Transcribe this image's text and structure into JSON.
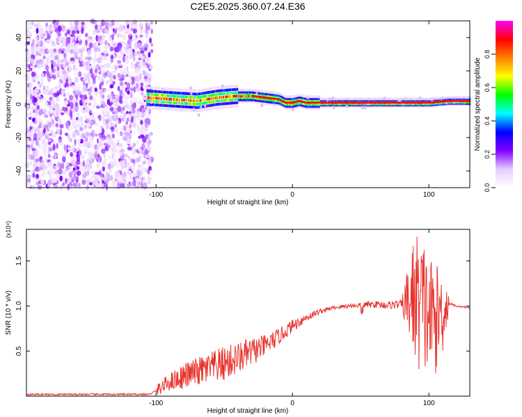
{
  "title": "C2E5.2025.360.07.24.E36",
  "chart_data": [
    {
      "type": "heatmap",
      "xlabel": "Height of straight line (km)",
      "ylabel": "Frequency (Hz)",
      "xlim": [
        -195,
        130
      ],
      "ylim": [
        -50,
        50
      ],
      "xticks": [
        -100,
        0,
        100
      ],
      "xtick_labels": [
        "-100",
        "0",
        "100"
      ],
      "yticks": [
        -40,
        -20,
        0,
        20,
        40
      ],
      "ytick_labels": [
        "-40",
        "-20",
        "0",
        "20",
        "40"
      ],
      "noise_region_x": [
        -195,
        -103
      ],
      "signal_ridge": {
        "x": [
          -107,
          -90,
          -70,
          -55,
          -40,
          -30,
          -20,
          -10,
          -5,
          0,
          5,
          10,
          30,
          60,
          85,
          100,
          115,
          130
        ],
        "y": [
          4,
          3,
          2,
          4,
          5,
          5,
          4,
          3,
          1,
          1,
          2,
          1,
          1,
          1,
          1,
          1,
          2,
          2
        ]
      },
      "colorbar": {
        "label": "Normalized spectral amplitude",
        "ticks": [
          0.0,
          0.2,
          0.4,
          0.6,
          0.8
        ],
        "tick_labels": [
          "0.0",
          "0.2",
          "0.4",
          "0.6",
          "0.8"
        ],
        "range": [
          0,
          1
        ],
        "colors": [
          "#ffffff",
          "#e6ccff",
          "#8000ff",
          "#0000ff",
          "#00ffff",
          "#00ff00",
          "#ffff00",
          "#ff8000",
          "#ff0000",
          "#ff00ff"
        ]
      }
    },
    {
      "type": "line",
      "xlabel": "Height of straight line (km)",
      "ylabel": "SNR (10 * v/v)",
      "multiplier": "(x10⁴)",
      "xlim": [
        -195,
        130
      ],
      "ylim": [
        0,
        1.85
      ],
      "xticks": [
        -100,
        0,
        100
      ],
      "xtick_labels": [
        "-100",
        "0",
        "100"
      ],
      "yticks": [
        0.5,
        1.0,
        1.5
      ],
      "ytick_labels": [
        "0.5",
        "1.0",
        "1.5"
      ],
      "color": "#e8332d",
      "series": [
        {
          "name": "SNR",
          "x": [
            -195,
            -105,
            -100,
            -90,
            -80,
            -70,
            -60,
            -50,
            -40,
            -30,
            -20,
            -10,
            0,
            10,
            20,
            30,
            40,
            50,
            60,
            70,
            80,
            85,
            90,
            95,
            100,
            105,
            110,
            115,
            120,
            130
          ],
          "y": [
            0.02,
            0.02,
            0.06,
            0.16,
            0.22,
            0.27,
            0.31,
            0.36,
            0.42,
            0.49,
            0.56,
            0.66,
            0.78,
            0.87,
            0.94,
            0.98,
            1.0,
            1.01,
            1.02,
            1.01,
            1.02,
            1.05,
            1.1,
            1.0,
            0.9,
            0.85,
            0.95,
            1.03,
            1.0,
            0.98
          ]
        }
      ],
      "envelope": {
        "x": [
          -100,
          -90,
          -80,
          -70,
          -60,
          -50,
          -40,
          -30,
          -20,
          -10,
          0,
          10,
          20,
          30,
          80,
          85,
          90,
          95,
          100,
          105,
          110,
          115
        ],
        "amp": [
          0.06,
          0.1,
          0.14,
          0.16,
          0.18,
          0.2,
          0.18,
          0.16,
          0.12,
          0.09,
          0.07,
          0.05,
          0.03,
          0.02,
          0.05,
          0.45,
          0.75,
          0.8,
          0.7,
          0.6,
          0.5,
          0.1
        ]
      }
    }
  ]
}
